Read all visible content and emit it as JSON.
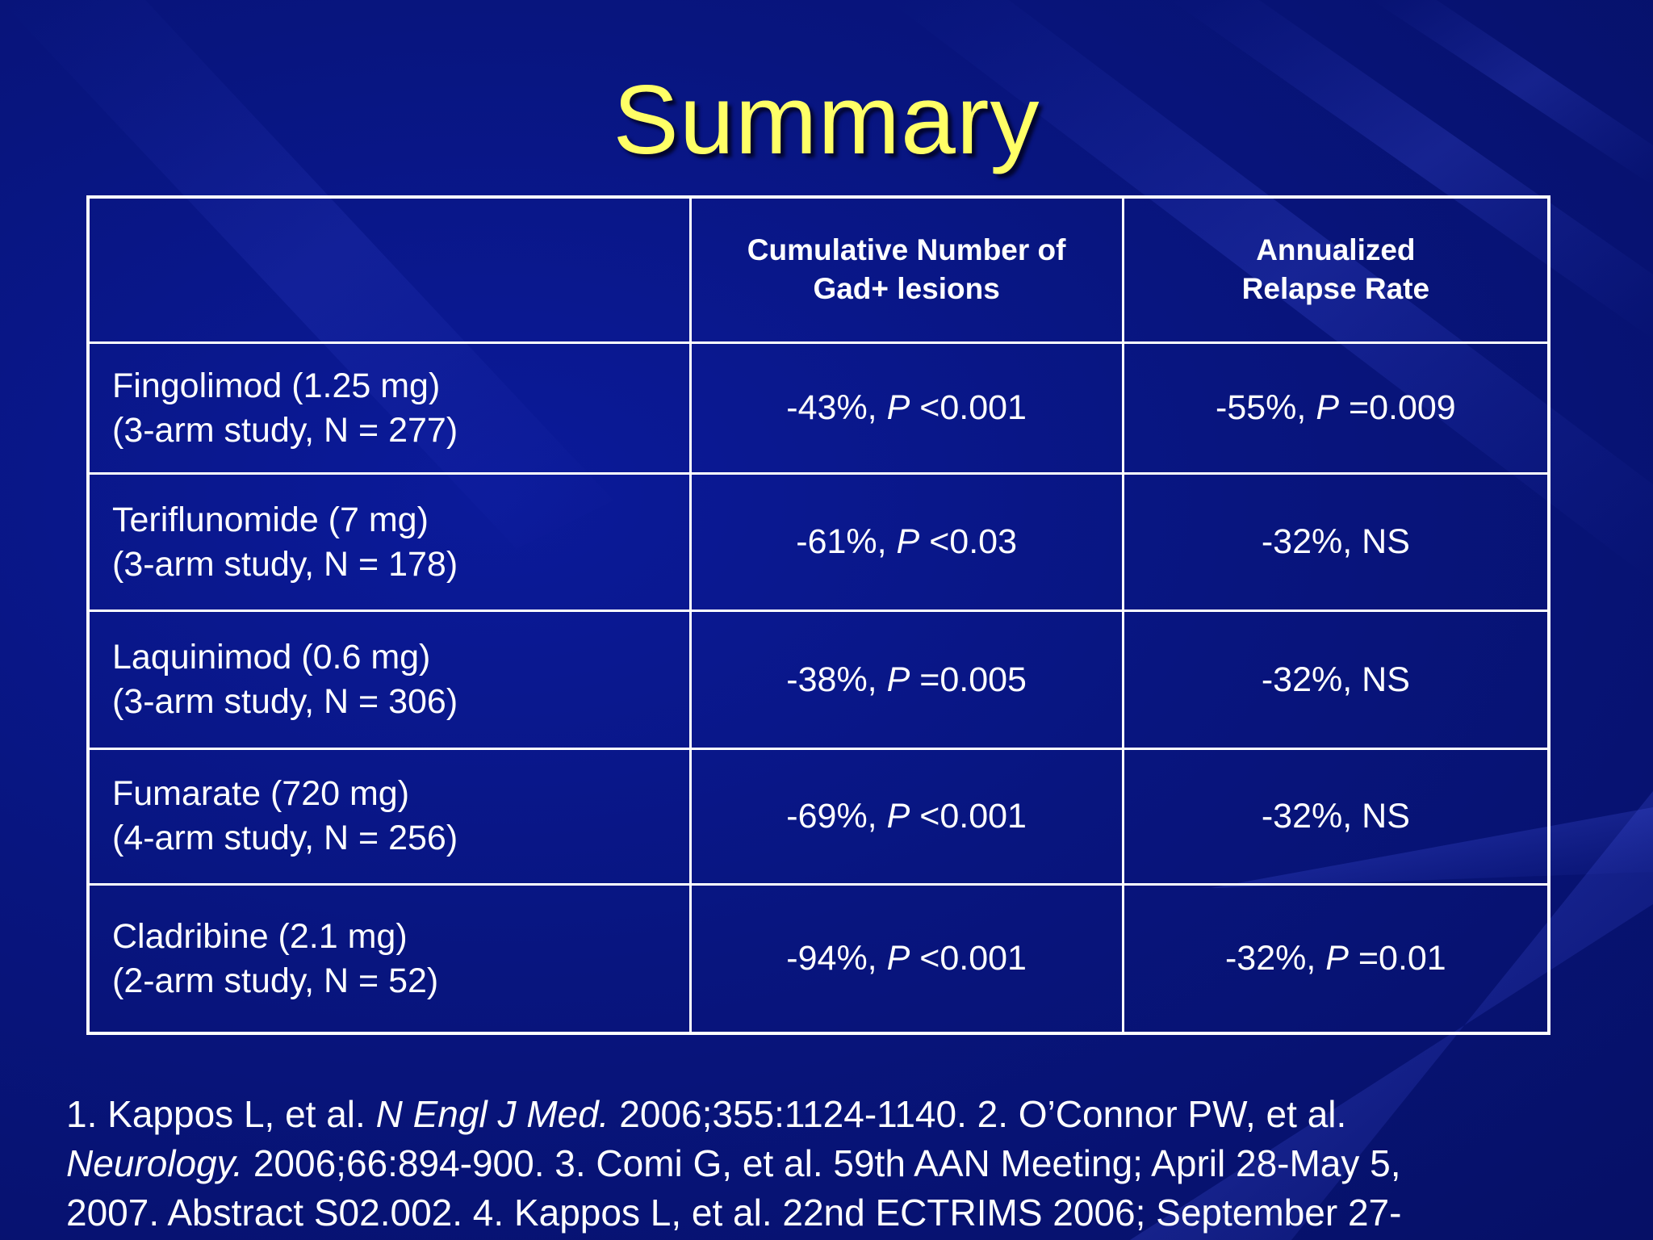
{
  "slide": {
    "title": "Summary",
    "colors": {
      "background": "#08157f",
      "title": "#ffff66",
      "text": "#ffffff",
      "grid": "#ffffff"
    }
  },
  "table": {
    "headers": [
      "",
      "Cumulative Number of Gad+ lesions",
      "Annualized Relapse Rate"
    ],
    "header_lines": {
      "col2": [
        "Cumulative Number of",
        "Gad+ lesions"
      ],
      "col3": [
        "Annualized",
        "Relapse Rate"
      ]
    },
    "rows": [
      {
        "drug": "Fingolimod (1.25 mg)",
        "study": "(3-arm study, N = 277)",
        "gad": {
          "pct": "-43%,",
          "p": "P",
          "stat": "<0.001"
        },
        "arr": {
          "pct": "-55%,",
          "p": "P",
          "stat": "=0.009"
        }
      },
      {
        "drug": "Teriflunomide (7 mg)",
        "study": "(3-arm study, N = 178)",
        "gad": {
          "pct": "-61%,",
          "p": "P",
          "stat": "<0.03"
        },
        "arr": {
          "pct": "-32%, NS",
          "p": "",
          "stat": ""
        }
      },
      {
        "drug": "Laquinimod (0.6 mg)",
        "study": "(3-arm study, N = 306)",
        "gad": {
          "pct": "-38%,",
          "p": "P",
          "stat": "=0.005"
        },
        "arr": {
          "pct": "-32%, NS",
          "p": "",
          "stat": ""
        }
      },
      {
        "drug": "Fumarate (720 mg)",
        "study": "(4-arm study, N = 256)",
        "gad": {
          "pct": "-69%,",
          "p": "P",
          "stat": "<0.001"
        },
        "arr": {
          "pct": "-32%, NS",
          "p": "",
          "stat": ""
        }
      },
      {
        "drug": "Cladribine (2.1 mg)",
        "study": "(2-arm study, N = 52)",
        "gad": {
          "pct": "-94%,",
          "p": "P",
          "stat": "<0.001"
        },
        "arr": {
          "pct": "-32%,",
          "p": "P",
          "stat": "=0.01"
        }
      }
    ]
  },
  "references": {
    "line1": {
      "a": "1. Kappos L, et al. ",
      "b": "N Engl J Med.",
      "c": " 2006;355:1124-1140. 2. O’Connor PW, et al."
    },
    "line2": {
      "a": "Neurology.",
      "b": " 2006;66:894-900. 3. Comi G, et al. 59th AAN Meeting; April 28-May 5,"
    },
    "line3": {
      "a": "2007. Abstract S02.002. 4. Kappos L, et al. 22nd ECTRIMS 2006; September 27-"
    }
  }
}
